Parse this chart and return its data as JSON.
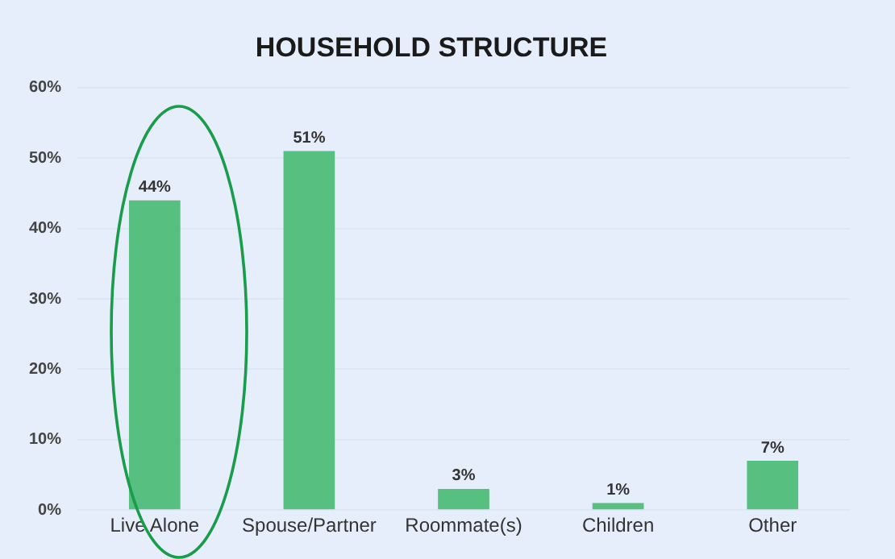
{
  "chart_data": {
    "type": "bar",
    "title": "HOUSEHOLD STRUCTURE",
    "categories": [
      "Live Alone",
      "Spouse/Partner",
      "Roommate(s)",
      "Children",
      "Other"
    ],
    "values": [
      44,
      51,
      3,
      1,
      7
    ],
    "color": "#57bf7f",
    "ylim": [
      0,
      60
    ],
    "yticks": [
      {
        "value": 0,
        "label": "0%"
      },
      {
        "value": 10,
        "label": "10%"
      },
      {
        "value": 20,
        "label": "20%"
      },
      {
        "value": 30,
        "label": "30%"
      },
      {
        "value": 40,
        "label": "40%"
      },
      {
        "value": 50,
        "label": "50%"
      },
      {
        "value": 60,
        "label": "60%"
      }
    ],
    "value_labels": [
      "44%",
      "51%",
      "3%",
      "1%",
      "7%"
    ],
    "grid": "y",
    "legend": false
  }
}
